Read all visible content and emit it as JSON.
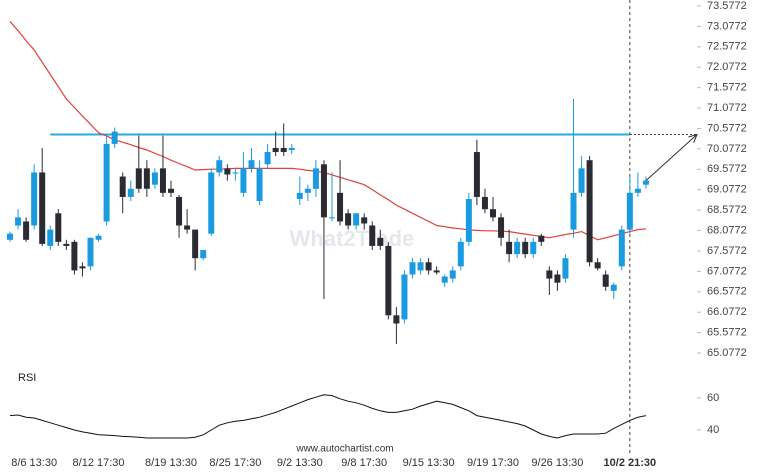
{
  "chart_data": {
    "type": "candlestick",
    "categories": [
      null,
      null,
      null,
      "8/6 13:30",
      null,
      null,
      null,
      null,
      null,
      null,
      null,
      "8/12 17:30",
      null,
      null,
      null,
      null,
      null,
      null,
      null,
      null,
      "8/19 13:30",
      null,
      null,
      null,
      null,
      null,
      null,
      null,
      "8/25 17:30",
      null,
      null,
      null,
      null,
      null,
      null,
      null,
      "9/2 13:30",
      null,
      null,
      null,
      null,
      null,
      null,
      null,
      "9/8 17:30",
      null,
      null,
      null,
      null,
      null,
      null,
      null,
      "9/15 13:30",
      null,
      null,
      null,
      null,
      null,
      null,
      null,
      "9/19 17:30",
      null,
      null,
      null,
      null,
      null,
      null,
      null,
      "9/26 13:30",
      null,
      null,
      null,
      null,
      null,
      null,
      null,
      null,
      "10/2 21:30",
      null,
      null
    ],
    "open": [
      67.85,
      68.2,
      68.3,
      68.2,
      69.5,
      67.7,
      68.5,
      67.75,
      67.8,
      67.2,
      67.2,
      67.85,
      68.3,
      70.2,
      69.4,
      68.9,
      69.6,
      69.6,
      69.2,
      69.6,
      69.1,
      68.9,
      68.2,
      68.1,
      67.4,
      68.0,
      69.5,
      69.6,
      69.5,
      69.0,
      69.6,
      68.8,
      69.7,
      70.1,
      70.1,
      70.05,
      68.85,
      69.0,
      69.1,
      69.7,
      68.4,
      69.0,
      68.5,
      68.2,
      68.4,
      68.2,
      67.9,
      67.7,
      66.0,
      65.9,
      67.0,
      67.1,
      67.3,
      67.1,
      66.8,
      66.9,
      67.2,
      67.8,
      70.0,
      68.9,
      68.6,
      68.4,
      67.8,
      67.5,
      67.8,
      67.5,
      67.95,
      67.1,
      67.0,
      66.9,
      68.1,
      69.0,
      69.8,
      67.3,
      67.0,
      66.6,
      67.2,
      68.1,
      69.0,
      69.2
    ],
    "high": [
      68.05,
      68.6,
      68.4,
      69.7,
      70.1,
      68.2,
      68.6,
      67.85,
      67.85,
      67.3,
      67.9,
      68.0,
      70.4,
      70.6,
      69.5,
      69.3,
      70.4,
      69.8,
      69.6,
      70.4,
      69.3,
      68.95,
      68.6,
      68.1,
      67.6,
      69.6,
      69.9,
      69.7,
      69.6,
      70.0,
      70.1,
      69.8,
      70.2,
      70.5,
      70.7,
      70.2,
      69.4,
      69.2,
      69.8,
      69.8,
      69.5,
      69.8,
      68.6,
      68.5,
      68.5,
      68.3,
      68.1,
      67.8,
      66.2,
      67.1,
      67.4,
      67.4,
      67.4,
      67.2,
      67.0,
      67.2,
      67.9,
      69.0,
      70.3,
      69.1,
      68.9,
      68.5,
      68.1,
      67.9,
      67.9,
      67.9,
      68.0,
      67.2,
      67.1,
      67.5,
      71.3,
      69.9,
      69.9,
      67.4,
      67.1,
      66.8,
      68.2,
      69.4,
      69.5,
      69.4
    ],
    "low": [
      67.8,
      68.1,
      67.8,
      68.1,
      67.7,
      67.6,
      67.7,
      67.6,
      67.0,
      66.95,
      67.1,
      67.8,
      68.2,
      70.1,
      68.5,
      68.8,
      69.0,
      68.9,
      69.1,
      68.9,
      68.9,
      67.9,
      68.0,
      67.1,
      67.35,
      67.95,
      69.4,
      69.3,
      69.3,
      68.9,
      69.5,
      68.7,
      69.6,
      69.9,
      69.9,
      69.95,
      68.7,
      68.8,
      68.9,
      66.4,
      68.3,
      68.2,
      68.1,
      68.1,
      68.1,
      67.6,
      67.6,
      65.9,
      65.3,
      65.8,
      66.9,
      67.0,
      67.0,
      67.0,
      66.7,
      66.8,
      67.1,
      67.7,
      68.7,
      68.5,
      68.3,
      67.7,
      67.3,
      67.4,
      67.4,
      67.4,
      67.7,
      66.5,
      66.6,
      66.8,
      67.9,
      68.9,
      67.2,
      67.1,
      66.6,
      66.4,
      67.1,
      68.0,
      68.9,
      69.1
    ],
    "close": [
      68.0,
      68.4,
      67.85,
      69.5,
      67.75,
      68.1,
      67.8,
      67.7,
      67.1,
      67.15,
      67.9,
      67.95,
      70.2,
      70.5,
      68.9,
      69.1,
      69.1,
      69.1,
      69.5,
      69.0,
      69.0,
      68.2,
      68.1,
      67.4,
      67.6,
      69.5,
      69.8,
      69.45,
      69.5,
      69.6,
      69.8,
      69.6,
      70.0,
      70.0,
      70.0,
      70.1,
      69.0,
      69.1,
      69.6,
      68.4,
      68.4,
      68.3,
      68.2,
      68.5,
      68.25,
      67.7,
      67.7,
      66.0,
      65.8,
      67.0,
      67.3,
      67.3,
      67.1,
      67.05,
      66.95,
      67.1,
      67.8,
      68.85,
      68.9,
      68.6,
      68.4,
      67.9,
      67.5,
      67.8,
      67.5,
      67.8,
      67.8,
      66.9,
      66.8,
      67.4,
      69.0,
      69.6,
      67.3,
      67.15,
      66.7,
      66.75,
      68.1,
      69.0,
      69.1,
      69.3
    ],
    "up_color": "#1a9be0",
    "down_color": "#2b2b33",
    "ma": {
      "color": "#e0403a",
      "values": [
        73.2,
        72.97,
        72.73,
        72.5,
        72.2,
        71.9,
        71.6,
        71.3,
        71.09,
        70.88,
        70.68,
        70.47,
        70.39,
        70.3,
        70.24,
        70.18,
        70.11,
        70.05,
        69.97,
        69.89,
        69.8,
        69.72,
        69.64,
        69.56,
        69.57,
        69.58,
        69.58,
        69.59,
        69.6,
        69.6,
        69.6,
        69.6,
        69.6,
        69.6,
        69.6,
        69.6,
        69.58,
        69.55,
        69.53,
        69.5,
        69.44,
        69.38,
        69.32,
        69.26,
        69.2,
        69.08,
        68.95,
        68.83,
        68.7,
        68.6,
        68.5,
        68.4,
        68.3,
        68.2,
        68.17,
        68.14,
        68.12,
        68.09,
        68.08,
        68.07,
        68.07,
        68.06,
        68.05,
        68.02,
        67.99,
        67.96,
        67.93,
        67.9,
        67.94,
        67.98,
        68.01,
        68.05,
        67.95,
        67.85,
        67.9,
        67.95,
        68.0,
        68.05,
        68.1,
        68.12
      ]
    },
    "resistance": {
      "value": 70.43,
      "color": "#29a9e0"
    },
    "ylim": [
      65.0772,
      73.5772
    ],
    "yticks": [
      65.0772,
      65.5772,
      66.0772,
      66.5772,
      67.0772,
      67.5772,
      68.0772,
      68.5772,
      69.0772,
      69.5772,
      70.0772,
      70.5772,
      71.0772,
      71.5772,
      72.0772,
      72.5772,
      73.0772,
      73.5772
    ],
    "rsi": {
      "label": "RSI",
      "color": "#111111",
      "ylim": [
        30,
        70
      ],
      "yticks": [
        40,
        60
      ],
      "values": [
        49,
        49.4,
        48,
        47.5,
        46,
        44.5,
        43,
        41.5,
        40,
        38.8,
        38,
        37,
        36.8,
        36.5,
        36,
        35.8,
        35.5,
        35,
        35,
        35,
        35,
        35,
        35,
        35.5,
        37,
        40,
        43,
        44.5,
        45.5,
        46,
        47,
        48,
        49.5,
        51,
        53,
        55,
        57,
        59,
        60.5,
        62,
        61.5,
        59.5,
        58,
        57,
        55.5,
        53.5,
        52,
        51,
        51,
        52,
        53,
        55,
        56.5,
        58,
        57,
        56,
        54,
        52,
        49,
        48,
        47,
        46,
        45,
        44,
        42.5,
        40,
        37.5,
        36,
        35,
        36.5,
        37.5,
        37.5,
        37.5,
        37.5,
        38,
        41,
        43.5,
        46,
        48,
        49
      ]
    },
    "watermark": "What2Trade",
    "footer": "www.autochartist.com"
  }
}
